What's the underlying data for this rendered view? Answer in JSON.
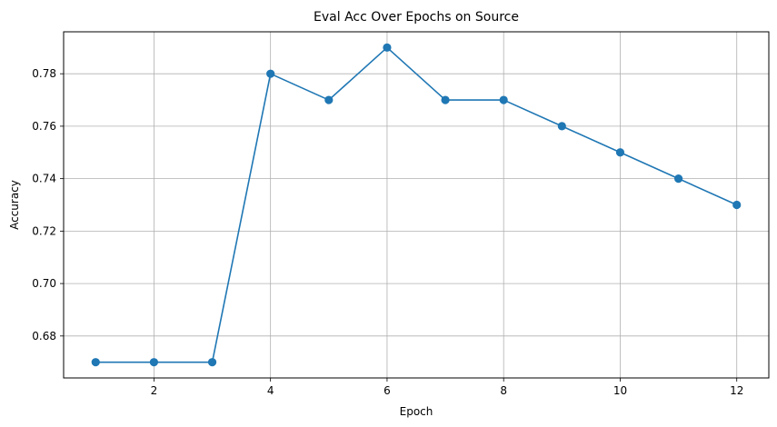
{
  "chart_data": {
    "type": "line",
    "title": "Eval Acc Over Epochs on Source",
    "xlabel": "Epoch",
    "ylabel": "Accuracy",
    "x": [
      1,
      2,
      3,
      4,
      5,
      6,
      7,
      8,
      9,
      10,
      11,
      12
    ],
    "series": [
      {
        "values": [
          0.67,
          0.67,
          0.67,
          0.78,
          0.77,
          0.79,
          0.77,
          0.77,
          0.76,
          0.75,
          0.74,
          0.73
        ],
        "color": "#1f77b4",
        "marker": "circle"
      }
    ],
    "xlim": [
      0.45,
      12.55
    ],
    "ylim": [
      0.664,
      0.796
    ],
    "xticks": [
      2,
      4,
      6,
      8,
      10,
      12
    ],
    "xtick_labels": [
      "2",
      "4",
      "6",
      "8",
      "10",
      "12"
    ],
    "yticks": [
      0.68,
      0.7,
      0.72,
      0.74,
      0.76,
      0.78
    ],
    "ytick_labels": [
      "0.68",
      "0.70",
      "0.72",
      "0.74",
      "0.76",
      "0.78"
    ],
    "grid": true,
    "grid_color": "#b0b0b0",
    "axis_color": "#000000"
  }
}
